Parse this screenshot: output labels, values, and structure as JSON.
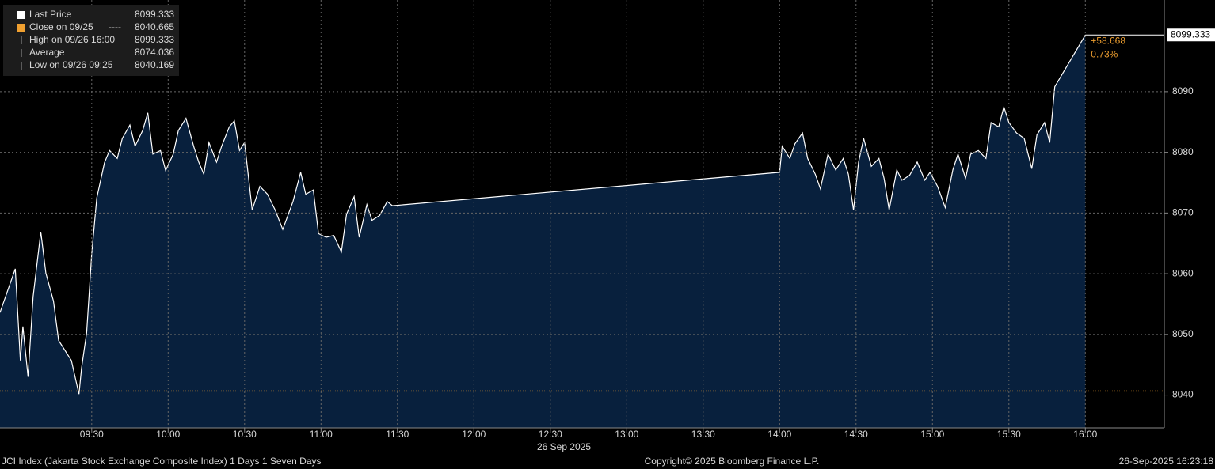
{
  "chart_data": {
    "type": "area",
    "x_label": "26 Sep 2025",
    "footer": {
      "left": "JCI Index (Jakarta Stock Exchange Composite Index) 1 Days 1 Seven Days",
      "center": "Copyright© 2025 Bloomberg Finance L.P.",
      "right": "26-Sep-2025 16:23:18"
    },
    "legend": [
      {
        "name": "Last Price",
        "value": 8099.333
      },
      {
        "name": "Close on 09/25",
        "style": "----",
        "value": 8040.665
      },
      {
        "name": "High on 09/26 16:00",
        "value": 8099.333
      },
      {
        "name": "Average",
        "value": 8074.036
      },
      {
        "name": "Low on 09/26 09:25",
        "value": 8040.169
      }
    ],
    "change": {
      "value": 58.668,
      "label": "+58.668"
    },
    "change_pct": {
      "value": 0.73,
      "label": "0.73%"
    },
    "close_color": "#f0a030",
    "xlim": [
      "08:54",
      "16:31"
    ],
    "xticks": [
      "09:30",
      "10:00",
      "10:30",
      "11:00",
      "11:30",
      "12:00",
      "12:30",
      "13:00",
      "13:30",
      "14:00",
      "14:30",
      "15:00",
      "15:30",
      "16:00"
    ],
    "ylim": [
      8034.6,
      8105.1
    ],
    "yticks": [
      8040,
      8050,
      8060,
      8070,
      8080,
      8090
    ],
    "grid": true,
    "x": [
      "08:54",
      "09:00",
      "09:02",
      "09:03",
      "09:05",
      "09:07",
      "09:10",
      "09:12",
      "09:15",
      "09:17",
      "09:19",
      "09:22",
      "09:25",
      "09:26",
      "09:28",
      "09:30",
      "09:32",
      "09:35",
      "09:37",
      "09:40",
      "09:42",
      "09:45",
      "09:47",
      "09:50",
      "09:52",
      "09:54",
      "09:57",
      "09:59",
      "10:02",
      "10:04",
      "10:07",
      "10:10",
      "10:12",
      "10:14",
      "10:16",
      "10:19",
      "10:21",
      "10:24",
      "10:26",
      "10:28",
      "10:30",
      "10:33",
      "10:36",
      "10:39",
      "10:42",
      "10:45",
      "10:49",
      "10:52",
      "10:54",
      "10:57",
      "10:59",
      "11:02",
      "11:05",
      "11:08",
      "11:10",
      "11:13",
      "11:15",
      "11:18",
      "11:20",
      "11:23",
      "11:26",
      "11:28",
      "14:00",
      "14:01",
      "14:04",
      "14:06",
      "14:09",
      "14:11",
      "14:14",
      "14:16",
      "14:19",
      "14:22",
      "14:25",
      "14:27",
      "14:29",
      "14:31",
      "14:33",
      "14:36",
      "14:39",
      "14:41",
      "14:43",
      "14:46",
      "14:48",
      "14:51",
      "14:54",
      "14:57",
      "14:59",
      "15:02",
      "15:05",
      "15:08",
      "15:10",
      "15:13",
      "15:15",
      "15:18",
      "15:21",
      "15:23",
      "15:26",
      "15:28",
      "15:30",
      "15:33",
      "15:36",
      "15:39",
      "15:41",
      "15:44",
      "15:46",
      "15:48",
      "16:00"
    ],
    "series": [
      {
        "name": "Last Price",
        "color": "#ffffff",
        "fill": "#08203d",
        "values": [
          8053.6,
          8060.8,
          8045.7,
          8051.3,
          8043,
          8056.2,
          8066.9,
          8060.1,
          8055.5,
          8049,
          8047.7,
          8045.7,
          8040.169,
          8044.4,
          8050.3,
          8063.3,
          8072.5,
          8078.3,
          8080.3,
          8079,
          8082.3,
          8084.5,
          8081,
          8083.6,
          8086.5,
          8079.7,
          8080.3,
          8077,
          8079.7,
          8083.6,
          8085.6,
          8081,
          8078.4,
          8076.4,
          8081.6,
          8078.4,
          8081,
          8084.2,
          8085.2,
          8080.3,
          8081.6,
          8070.5,
          8074.4,
          8073.1,
          8070.5,
          8067.3,
          8071.9,
          8076.7,
          8073.1,
          8073.8,
          8066.6,
          8066,
          8066.3,
          8063.6,
          8069.8,
          8072.7,
          8066,
          8071.4,
          8068.8,
          8069.6,
          8071.9,
          8071.2,
          8076.7,
          8081,
          8079,
          8081.4,
          8083.2,
          8079,
          8076.4,
          8074,
          8079.7,
          8077.1,
          8079,
          8076.4,
          8070.5,
          8078.4,
          8082.3,
          8077.7,
          8079,
          8075.7,
          8070.5,
          8077.1,
          8075.4,
          8076.2,
          8078.4,
          8075.4,
          8076.7,
          8074.4,
          8070.9,
          8077.1,
          8079.7,
          8075.7,
          8079.7,
          8080.3,
          8079,
          8084.9,
          8084.2,
          8087.5,
          8084.9,
          8083.2,
          8082.3,
          8077.3,
          8082.9,
          8084.9,
          8081.6,
          8090.8,
          8099.333
        ]
      }
    ]
  }
}
